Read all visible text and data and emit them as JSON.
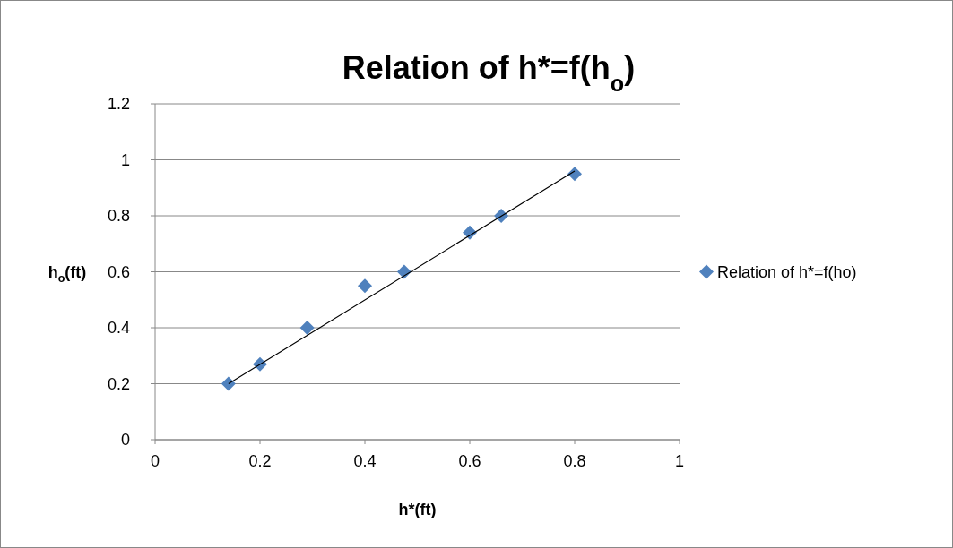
{
  "chart_data": {
    "type": "scatter",
    "title": "Relation of h*=f(h$_{o}$)",
    "xlabel": "h*(ft)",
    "ylabel": "h$_{o}$(ft)",
    "xlim": [
      0,
      1
    ],
    "xticks": [
      0,
      0.2,
      0.4,
      0.6,
      0.8,
      1
    ],
    "ylim": [
      0,
      1.2
    ],
    "yticks": [
      0,
      0.2,
      0.4,
      0.6,
      0.8,
      1,
      1.2
    ],
    "grid": "y",
    "legend": "right",
    "series": [
      {
        "name": "Relation of h*=f(ho)",
        "type": "scatter",
        "color": "#4f81bd",
        "marker": "diamond",
        "x": [
          0.14,
          0.2,
          0.29,
          0.4,
          0.475,
          0.6,
          0.66,
          0.8
        ],
        "values": [
          0.2,
          0.27,
          0.4,
          0.55,
          0.6,
          0.74,
          0.8,
          0.95
        ]
      },
      {
        "type": "line",
        "color": "#000000",
        "marker": "none",
        "x": [
          0.14,
          0.8
        ],
        "values": [
          0.2,
          0.96
        ]
      }
    ]
  }
}
